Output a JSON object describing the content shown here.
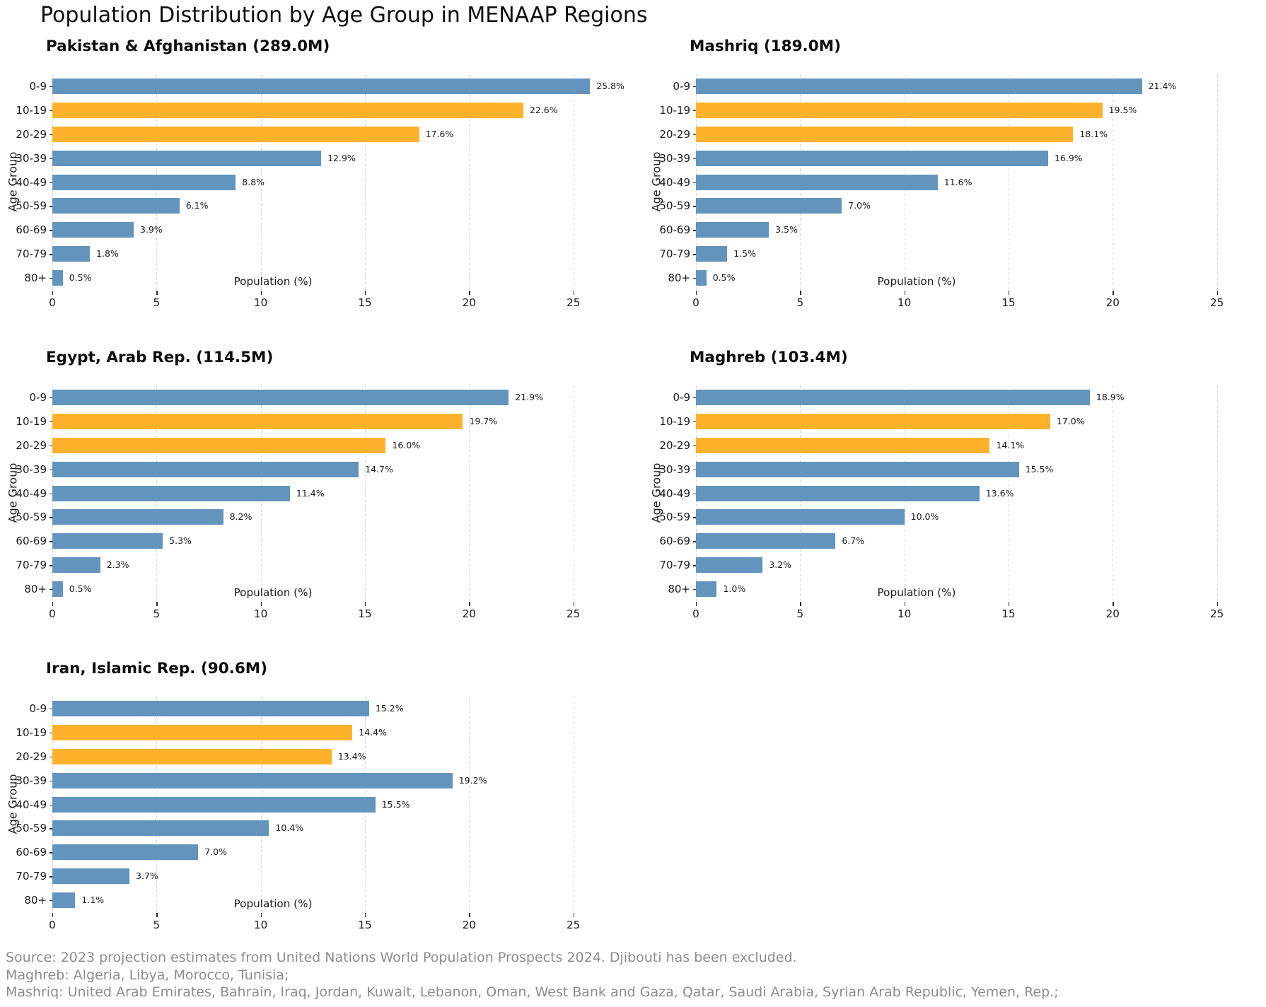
{
  "title": "Population Distribution by Age Group in MENAAP Regions",
  "footer": {
    "line1": "Source: 2023 projection estimates from United Nations World Population Prospects 2024. Djibouti has been excluded.",
    "line2": "Maghreb: Algeria, Libya, Morocco, Tunisia;",
    "line3": "Mashriq: United Arab Emirates, Bahrain, Iraq, Jordan, Kuwait, Lebanon, Oman, West Bank and Gaza, Qatar, Saudi Arabia, Syrian Arab Republic, Yemen, Rep.;"
  },
  "colors": {
    "bar_default": "#6394be",
    "bar_highlight": "#feb22b",
    "grid": "#d9d9d9",
    "footer_text": "#8c8c8c"
  },
  "chart_data": [
    {
      "type": "bar",
      "orientation": "horizontal",
      "title": "Pakistan & Afghanistan (289.0M)",
      "xlabel": "Population (%)",
      "ylabel": "Age Group",
      "categories": [
        "0-9",
        "10-19",
        "20-29",
        "30-39",
        "40-49",
        "50-59",
        "60-69",
        "70-79",
        "80+"
      ],
      "values": [
        25.8,
        22.6,
        17.6,
        12.9,
        8.8,
        6.1,
        3.9,
        1.8,
        0.5
      ],
      "highlighted_categories": [
        "10-19",
        "20-29"
      ],
      "xlim": [
        0,
        26.2
      ],
      "xticks": [
        0,
        5,
        10,
        15,
        20,
        25
      ],
      "grid": "vertical-dashed",
      "value_label_format": "percent-1dp"
    },
    {
      "type": "bar",
      "orientation": "horizontal",
      "title": "Mashriq (189.0M)",
      "xlabel": "Population (%)",
      "ylabel": "Age Group",
      "categories": [
        "0-9",
        "10-19",
        "20-29",
        "30-39",
        "40-49",
        "50-59",
        "60-69",
        "70-79",
        "80+"
      ],
      "values": [
        21.4,
        19.5,
        18.1,
        16.9,
        11.6,
        7.0,
        3.5,
        1.5,
        0.5
      ],
      "highlighted_categories": [
        "10-19",
        "20-29"
      ],
      "xlim": [
        0,
        26.2
      ],
      "xticks": [
        0,
        5,
        10,
        15,
        20,
        25
      ],
      "grid": "vertical-dashed",
      "value_label_format": "percent-1dp"
    },
    {
      "type": "bar",
      "orientation": "horizontal",
      "title": "Egypt, Arab Rep. (114.5M)",
      "xlabel": "Population (%)",
      "ylabel": "Age Group",
      "categories": [
        "0-9",
        "10-19",
        "20-29",
        "30-39",
        "40-49",
        "50-59",
        "60-69",
        "70-79",
        "80+"
      ],
      "values": [
        21.9,
        19.7,
        16.0,
        14.7,
        11.4,
        8.2,
        5.3,
        2.3,
        0.5
      ],
      "highlighted_categories": [
        "10-19",
        "20-29"
      ],
      "xlim": [
        0,
        26.2
      ],
      "xticks": [
        0,
        5,
        10,
        15,
        20,
        25
      ],
      "grid": "vertical-dashed",
      "value_label_format": "percent-1dp"
    },
    {
      "type": "bar",
      "orientation": "horizontal",
      "title": "Maghreb (103.4M)",
      "xlabel": "Population (%)",
      "ylabel": "Age Group",
      "categories": [
        "0-9",
        "10-19",
        "20-29",
        "30-39",
        "40-49",
        "50-59",
        "60-69",
        "70-79",
        "80+"
      ],
      "values": [
        18.9,
        17.0,
        14.1,
        15.5,
        13.6,
        10.0,
        6.7,
        3.2,
        1.0
      ],
      "highlighted_categories": [
        "10-19",
        "20-29"
      ],
      "xlim": [
        0,
        26.2
      ],
      "xticks": [
        0,
        5,
        10,
        15,
        20,
        25
      ],
      "grid": "vertical-dashed",
      "value_label_format": "percent-1dp"
    },
    {
      "type": "bar",
      "orientation": "horizontal",
      "title": "Iran, Islamic Rep. (90.6M)",
      "xlabel": "Population (%)",
      "ylabel": "Age Group",
      "categories": [
        "0-9",
        "10-19",
        "20-29",
        "30-39",
        "40-49",
        "50-59",
        "60-69",
        "70-79",
        "80+"
      ],
      "values": [
        15.2,
        14.4,
        13.4,
        19.2,
        15.5,
        10.4,
        7.0,
        3.7,
        1.1
      ],
      "highlighted_categories": [
        "10-19",
        "20-29"
      ],
      "xlim": [
        0,
        26.2
      ],
      "xticks": [
        0,
        5,
        10,
        15,
        20,
        25
      ],
      "grid": "vertical-dashed",
      "value_label_format": "percent-1dp"
    }
  ]
}
